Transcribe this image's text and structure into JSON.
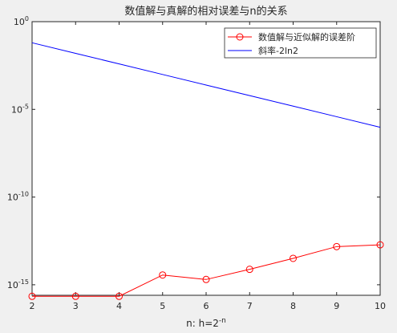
{
  "chart_data": {
    "type": "line",
    "title": "数值解与真解的相对误差与n的关系",
    "xlabel_prefix": "n: h=2",
    "xlabel_sup": "-n",
    "ylabel": "",
    "x": [
      2,
      3,
      4,
      5,
      6,
      7,
      8,
      9,
      10
    ],
    "xlim": [
      2,
      10
    ],
    "xticks": [
      2,
      3,
      4,
      5,
      6,
      7,
      8,
      9,
      10
    ],
    "yscale": "log",
    "ylim_exponent": [
      -15.6,
      0
    ],
    "yticks": [
      {
        "base": "10",
        "exp": "0",
        "value_exp": 0
      },
      {
        "base": "10",
        "exp": "-5",
        "value_exp": -5
      },
      {
        "base": "10",
        "exp": "-10",
        "value_exp": -10
      },
      {
        "base": "10",
        "exp": "-15",
        "value_exp": -15
      }
    ],
    "grid": false,
    "legend_position": "top-right",
    "series": [
      {
        "name": "数值解与近似解的误差阶",
        "color": "#ff0000",
        "marker": "circle",
        "values": [
          2.2e-16,
          2.2e-16,
          2.2e-16,
          3.6e-15,
          2e-15,
          7.6e-15,
          3.2e-14,
          1.5e-13,
          1.9e-13
        ]
      },
      {
        "name": "斜率-2ln2",
        "color": "#0000ff",
        "marker": "none",
        "values": [
          0.0625,
          0.015625,
          0.00390625,
          0.0009765625,
          0.000244140625,
          6.103515625e-05,
          1.52587890625e-05,
          3.814697265625e-06,
          9.5367431640625e-07
        ]
      }
    ]
  }
}
